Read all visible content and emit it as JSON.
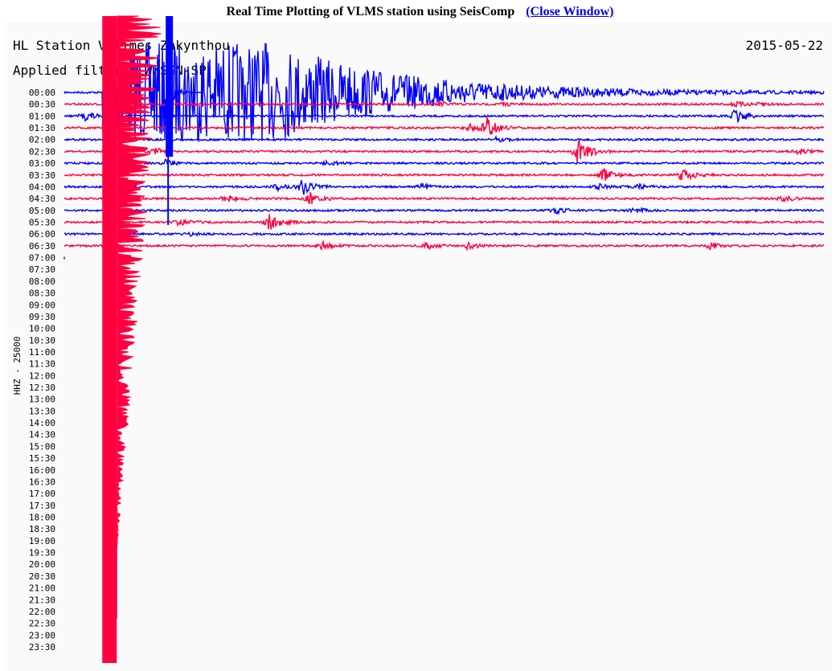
{
  "header": {
    "title": "Real Time Plotting of VLMS station using SeisComp",
    "close_link": "(Close Window)"
  },
  "chart_data": {
    "type": "line",
    "title": "HL Station Volimes Zakynthou",
    "date": "2015-05-22",
    "filter": "Applied filter : WWSSN-SP",
    "ylabel": "HHZ - 25000",
    "row_minutes": 30,
    "colors": {
      "even": "#0000ff",
      "odd": "#ff0040"
    },
    "row_labels": [
      "00:00",
      "00:30",
      "01:00",
      "01:30",
      "02:00",
      "02:30",
      "03:00",
      "03:30",
      "04:00",
      "04:30",
      "05:00",
      "05:30",
      "06:00",
      "06:30",
      "07:00",
      "07:30",
      "08:00",
      "08:30",
      "09:00",
      "09:30",
      "10:00",
      "10:30",
      "11:00",
      "11:30",
      "12:00",
      "12:30",
      "13:00",
      "13:30",
      "14:00",
      "14:30",
      "15:00",
      "15:30",
      "16:00",
      "16:30",
      "17:00",
      "17:30",
      "18:00",
      "18:30",
      "19:00",
      "19:30",
      "20:00",
      "20:30",
      "21:00",
      "21:30",
      "22:00",
      "22:30",
      "23:00",
      "23:30"
    ],
    "rows_with_data": 15,
    "last_row_minutes": 0.1,
    "events": [
      {
        "row": 1,
        "minute": 14.8,
        "amp": 3
      },
      {
        "row": 1,
        "minute": 17.3,
        "amp": 2
      },
      {
        "row": 1,
        "minute": 26.5,
        "amp": 3
      },
      {
        "row": 1,
        "minute": 27.5,
        "amp": 2
      },
      {
        "row": 2,
        "minute": 0.8,
        "amp": 6
      },
      {
        "row": 2,
        "minute": 26.5,
        "amp": 10
      },
      {
        "row": 3,
        "minute": 16.7,
        "amp": 12
      },
      {
        "row": 3,
        "minute": 16.0,
        "amp": 5
      },
      {
        "row": 4,
        "minute": 17.0,
        "amp": 3
      },
      {
        "row": 5,
        "minute": 3.5,
        "amp": 5
      },
      {
        "row": 5,
        "minute": 20.3,
        "amp": 18
      },
      {
        "row": 5,
        "minute": 29.0,
        "amp": 4
      },
      {
        "row": 6,
        "minute": 4.0,
        "amp": 4
      },
      {
        "row": 6,
        "minute": 10.3,
        "amp": 3
      },
      {
        "row": 7,
        "minute": 21.3,
        "amp": 8
      },
      {
        "row": 7,
        "minute": 24.4,
        "amp": 8
      },
      {
        "row": 8,
        "minute": 9.4,
        "amp": 10
      },
      {
        "row": 8,
        "minute": 8.4,
        "amp": 4
      },
      {
        "row": 8,
        "minute": 14.1,
        "amp": 4
      },
      {
        "row": 8,
        "minute": 21.1,
        "amp": 3
      },
      {
        "row": 8,
        "minute": 22.7,
        "amp": 3
      },
      {
        "row": 9,
        "minute": 9.7,
        "amp": 7
      },
      {
        "row": 9,
        "minute": 6.4,
        "amp": 4
      },
      {
        "row": 9,
        "minute": 28.4,
        "amp": 4
      },
      {
        "row": 10,
        "minute": 19.4,
        "amp": 4
      },
      {
        "row": 10,
        "minute": 22.5,
        "amp": 3
      },
      {
        "row": 11,
        "minute": 8.1,
        "amp": 10
      },
      {
        "row": 11,
        "minute": 4.5,
        "amp": 4
      },
      {
        "row": 12,
        "minute": 5.0,
        "amp": 2
      },
      {
        "row": 13,
        "minute": 10.2,
        "amp": 5
      },
      {
        "row": 13,
        "minute": 14.3,
        "amp": 4
      },
      {
        "row": 13,
        "minute": 15.9,
        "amp": 4
      },
      {
        "row": 13,
        "minute": 25.5,
        "amp": 4
      }
    ],
    "mainshock": {
      "row": 0,
      "minute": 1.5,
      "color": "#ff0040"
    },
    "blue_spike": {
      "row": 0,
      "minute": 4.1,
      "color": "#0000ff"
    }
  }
}
